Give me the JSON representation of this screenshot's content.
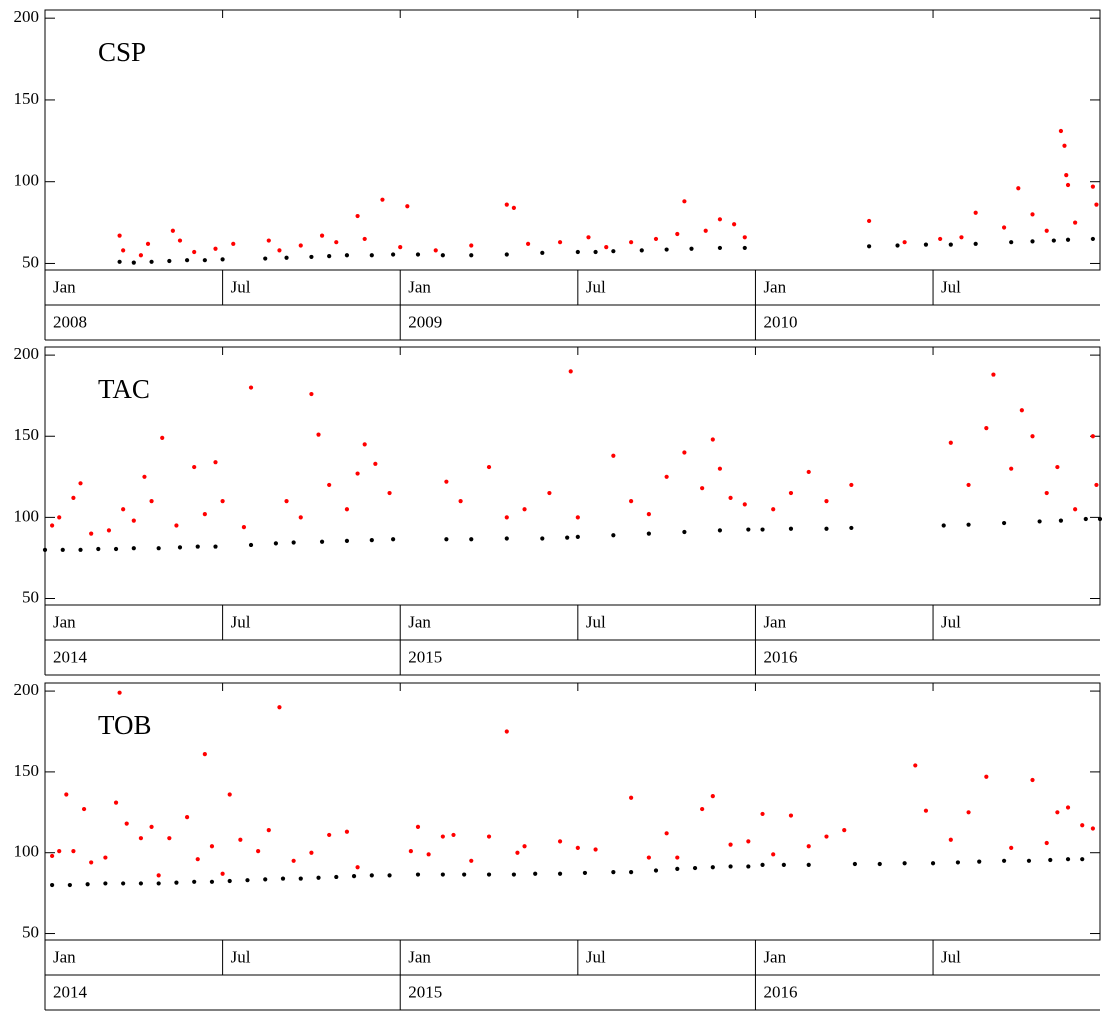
{
  "chart_data": [
    {
      "type": "scatter",
      "title": "CSP",
      "xlim": [
        2008,
        2010.97
      ],
      "ylim": [
        46,
        205
      ],
      "yticks": [
        50,
        100,
        150,
        200
      ],
      "xticks": [
        {
          "value": 2008,
          "label": "Jan"
        },
        {
          "value": 2008.5,
          "label": "Jul"
        },
        {
          "value": 2009,
          "label": "Jan"
        },
        {
          "value": 2009.5,
          "label": "Jul"
        },
        {
          "value": 2010,
          "label": "Jan"
        },
        {
          "value": 2010.5,
          "label": "Jul"
        }
      ],
      "year_ticks": [
        2008,
        2009,
        2010
      ],
      "series": [
        {
          "color": "#ff0000",
          "x": [
            2008.21,
            2008.22,
            2008.27,
            2008.29,
            2008.36,
            2008.38,
            2008.42,
            2008.48,
            2008.53,
            2008.63,
            2008.66,
            2008.72,
            2008.78,
            2008.82,
            2008.88,
            2008.9,
            2008.95,
            2009.0,
            2009.02,
            2009.1,
            2009.2,
            2009.3,
            2009.32,
            2009.36,
            2009.45,
            2009.53,
            2009.58,
            2009.65,
            2009.72,
            2009.78,
            2009.8,
            2009.86,
            2009.9,
            2009.94,
            2009.97,
            2010.32,
            2010.42,
            2010.52,
            2010.58,
            2010.62,
            2010.7,
            2010.74,
            2010.78,
            2010.82,
            2010.86,
            2010.87,
            2010.875,
            2010.88,
            2010.9,
            2010.95,
            2010.96
          ],
          "values": [
            67,
            58,
            55,
            62,
            70,
            64,
            57,
            59,
            62,
            64,
            58,
            61,
            67,
            63,
            79,
            65,
            89,
            60,
            85,
            58,
            61,
            86,
            84,
            62,
            63,
            66,
            60,
            63,
            65,
            68,
            88,
            70,
            77,
            74,
            66,
            76,
            63,
            65,
            66,
            81,
            72,
            96,
            80,
            70,
            131,
            122,
            104,
            98,
            75,
            97,
            86
          ]
        },
        {
          "color": "#000000",
          "x": [
            2008.21,
            2008.25,
            2008.3,
            2008.35,
            2008.4,
            2008.45,
            2008.5,
            2008.62,
            2008.68,
            2008.75,
            2008.8,
            2008.85,
            2008.92,
            2008.98,
            2009.05,
            2009.12,
            2009.2,
            2009.3,
            2009.4,
            2009.5,
            2009.55,
            2009.6,
            2009.68,
            2009.75,
            2009.82,
            2009.9,
            2009.97,
            2010.32,
            2010.4,
            2010.48,
            2010.55,
            2010.62,
            2010.72,
            2010.78,
            2010.84,
            2010.88,
            2010.95
          ],
          "values": [
            51,
            50.5,
            51,
            51.5,
            52,
            52,
            52.5,
            53,
            53.5,
            54,
            54.5,
            55,
            55,
            55.5,
            55.5,
            55,
            55,
            55.5,
            56.5,
            57,
            57,
            57.5,
            58,
            58.5,
            59,
            59.5,
            59.5,
            60.5,
            61,
            61.5,
            61.5,
            62,
            63,
            63.5,
            64,
            64.5,
            65
          ]
        }
      ]
    },
    {
      "type": "scatter",
      "title": "TAC",
      "xlim": [
        2014,
        2016.97
      ],
      "ylim": [
        46,
        205
      ],
      "yticks": [
        50,
        100,
        150,
        200
      ],
      "xticks": [
        {
          "value": 2014,
          "label": "Jan"
        },
        {
          "value": 2014.5,
          "label": "Jul"
        },
        {
          "value": 2015,
          "label": "Jan"
        },
        {
          "value": 2015.5,
          "label": "Jul"
        },
        {
          "value": 2016,
          "label": "Jan"
        },
        {
          "value": 2016.5,
          "label": "Jul"
        }
      ],
      "year_ticks": [
        2014,
        2015,
        2016
      ],
      "series": [
        {
          "color": "#ff0000",
          "x": [
            2014.02,
            2014.04,
            2014.08,
            2014.1,
            2014.13,
            2014.18,
            2014.22,
            2014.25,
            2014.28,
            2014.3,
            2014.33,
            2014.37,
            2014.42,
            2014.45,
            2014.48,
            2014.5,
            2014.56,
            2014.58,
            2014.68,
            2014.72,
            2014.75,
            2014.77,
            2014.8,
            2014.85,
            2014.88,
            2014.9,
            2014.93,
            2014.97,
            2015.13,
            2015.17,
            2015.25,
            2015.3,
            2015.35,
            2015.42,
            2015.48,
            2015.5,
            2015.6,
            2015.65,
            2015.7,
            2015.75,
            2015.8,
            2015.85,
            2015.88,
            2015.9,
            2015.93,
            2015.97,
            2016.05,
            2016.1,
            2016.15,
            2016.2,
            2016.27,
            2016.55,
            2016.6,
            2016.65,
            2016.67,
            2016.72,
            2016.75,
            2016.78,
            2016.82,
            2016.85,
            2016.9,
            2016.95,
            2016.96
          ],
          "values": [
            95,
            100,
            112,
            121,
            90,
            92,
            105,
            98,
            125,
            110,
            149,
            95,
            131,
            102,
            134,
            110,
            94,
            180,
            110,
            100,
            176,
            151,
            120,
            105,
            127,
            145,
            133,
            115,
            122,
            110,
            131,
            100,
            105,
            115,
            190,
            100,
            138,
            110,
            102,
            125,
            140,
            118,
            148,
            130,
            112,
            108,
            105,
            115,
            128,
            110,
            120,
            146,
            120,
            155,
            188,
            130,
            166,
            150,
            115,
            131,
            105,
            150,
            120
          ]
        },
        {
          "color": "#000000",
          "x": [
            2014.0,
            2014.05,
            2014.1,
            2014.15,
            2014.2,
            2014.25,
            2014.32,
            2014.38,
            2014.43,
            2014.48,
            2014.58,
            2014.65,
            2014.7,
            2014.78,
            2014.85,
            2014.92,
            2014.98,
            2015.13,
            2015.2,
            2015.3,
            2015.4,
            2015.47,
            2015.5,
            2015.6,
            2015.7,
            2015.8,
            2015.9,
            2015.98,
            2016.02,
            2016.1,
            2016.2,
            2016.27,
            2016.53,
            2016.6,
            2016.7,
            2016.8,
            2016.86,
            2016.93,
            2016.97
          ],
          "values": [
            80,
            80,
            80,
            80.5,
            80.5,
            81,
            81,
            81.5,
            82,
            82,
            83,
            84,
            84.5,
            85,
            85.5,
            86,
            86.5,
            86.5,
            86.5,
            87,
            87,
            87.5,
            88,
            89,
            90,
            91,
            92,
            92.5,
            92.5,
            93,
            93,
            93.5,
            95,
            95.5,
            96.5,
            97.5,
            98,
            99,
            99
          ]
        }
      ]
    },
    {
      "type": "scatter",
      "title": "TOB",
      "xlim": [
        2014,
        2016.97
      ],
      "ylim": [
        46,
        205
      ],
      "yticks": [
        50,
        100,
        150,
        200
      ],
      "xticks": [
        {
          "value": 2014,
          "label": "Jan"
        },
        {
          "value": 2014.5,
          "label": "Jul"
        },
        {
          "value": 2015,
          "label": "Jan"
        },
        {
          "value": 2015.5,
          "label": "Jul"
        },
        {
          "value": 2016,
          "label": "Jan"
        },
        {
          "value": 2016.5,
          "label": "Jul"
        }
      ],
      "year_ticks": [
        2014,
        2015,
        2016
      ],
      "series": [
        {
          "color": "#ff0000",
          "x": [
            2014.02,
            2014.04,
            2014.06,
            2014.08,
            2014.11,
            2014.13,
            2014.17,
            2014.2,
            2014.21,
            2014.23,
            2014.27,
            2014.3,
            2014.32,
            2014.35,
            2014.4,
            2014.43,
            2014.45,
            2014.47,
            2014.5,
            2014.52,
            2014.55,
            2014.6,
            2014.63,
            2014.66,
            2014.7,
            2014.75,
            2014.8,
            2014.85,
            2014.88,
            2015.03,
            2015.05,
            2015.08,
            2015.12,
            2015.15,
            2015.2,
            2015.25,
            2015.3,
            2015.33,
            2015.35,
            2015.45,
            2015.5,
            2015.55,
            2015.65,
            2015.7,
            2015.75,
            2015.78,
            2015.85,
            2015.88,
            2015.93,
            2015.98,
            2016.02,
            2016.05,
            2016.1,
            2016.15,
            2016.2,
            2016.25,
            2016.45,
            2016.48,
            2016.55,
            2016.6,
            2016.65,
            2016.72,
            2016.78,
            2016.82,
            2016.85,
            2016.88,
            2016.92,
            2016.95
          ],
          "values": [
            98,
            101,
            136,
            101,
            127,
            94,
            97,
            131,
            199,
            118,
            109,
            116,
            86,
            109,
            122,
            96,
            161,
            104,
            87,
            136,
            108,
            101,
            114,
            190,
            95,
            100,
            111,
            113,
            91,
            101,
            116,
            99,
            110,
            111,
            95,
            110,
            175,
            100,
            104,
            107,
            103,
            102,
            134,
            97,
            112,
            97,
            127,
            135,
            105,
            107,
            124,
            99,
            123,
            104,
            110,
            114,
            154,
            126,
            108,
            125,
            147,
            103,
            145,
            106,
            125,
            128,
            117,
            115
          ]
        },
        {
          "color": "#000000",
          "x": [
            2014.02,
            2014.07,
            2014.12,
            2014.17,
            2014.22,
            2014.27,
            2014.32,
            2014.37,
            2014.42,
            2014.47,
            2014.52,
            2014.57,
            2014.62,
            2014.67,
            2014.72,
            2014.77,
            2014.82,
            2014.87,
            2014.92,
            2014.97,
            2015.05,
            2015.12,
            2015.18,
            2015.25,
            2015.32,
            2015.38,
            2015.45,
            2015.52,
            2015.6,
            2015.65,
            2015.72,
            2015.78,
            2015.83,
            2015.88,
            2015.93,
            2015.98,
            2016.02,
            2016.08,
            2016.15,
            2016.28,
            2016.35,
            2016.42,
            2016.5,
            2016.57,
            2016.63,
            2016.7,
            2016.77,
            2016.83,
            2016.88,
            2016.92
          ],
          "values": [
            80,
            80,
            80.5,
            81,
            81,
            81,
            81,
            81.5,
            82,
            82,
            82.5,
            83,
            83.5,
            84,
            84,
            84.5,
            85,
            85.5,
            86,
            86,
            86.5,
            86.5,
            86.5,
            86.5,
            86.5,
            87,
            87,
            87.5,
            88,
            88,
            89,
            90,
            90.5,
            91,
            91.5,
            91.5,
            92.5,
            92.5,
            92.5,
            93,
            93,
            93.5,
            93.5,
            94,
            94.5,
            95,
            95,
            95.5,
            96,
            96
          ]
        }
      ]
    }
  ]
}
